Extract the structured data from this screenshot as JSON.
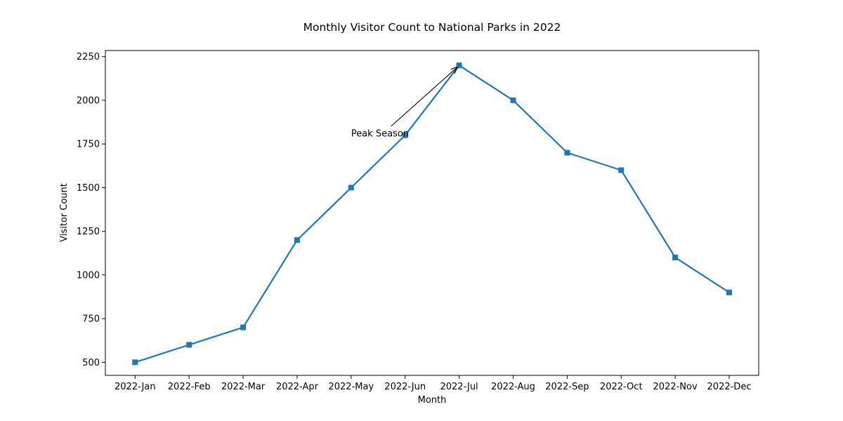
{
  "chart_data": {
    "type": "line",
    "title": "Monthly Visitor Count to National Parks in 2022",
    "xlabel": "Month",
    "ylabel": "Visitor Count",
    "categories": [
      "2022-Jan",
      "2022-Feb",
      "2022-Mar",
      "2022-Apr",
      "2022-May",
      "2022-Jun",
      "2022-Jul",
      "2022-Aug",
      "2022-Sep",
      "2022-Oct",
      "2022-Nov",
      "2022-Dec"
    ],
    "series": [
      {
        "values": [
          500,
          600,
          700,
          1200,
          1500,
          1800,
          2200,
          2000,
          1700,
          1600,
          1100,
          900
        ],
        "color": "#1f77b4",
        "marker": "square"
      }
    ],
    "ylim": [
      425,
      2285
    ],
    "yticks": [
      500,
      750,
      1000,
      1250,
      1500,
      1750,
      2000,
      2250
    ],
    "grid": false,
    "annotations": [
      {
        "text": "Peak Season",
        "point": {
          "x": "2022-Jul",
          "y": 2200
        },
        "text_at": {
          "x": "2022-May",
          "y": 1800
        }
      }
    ]
  }
}
